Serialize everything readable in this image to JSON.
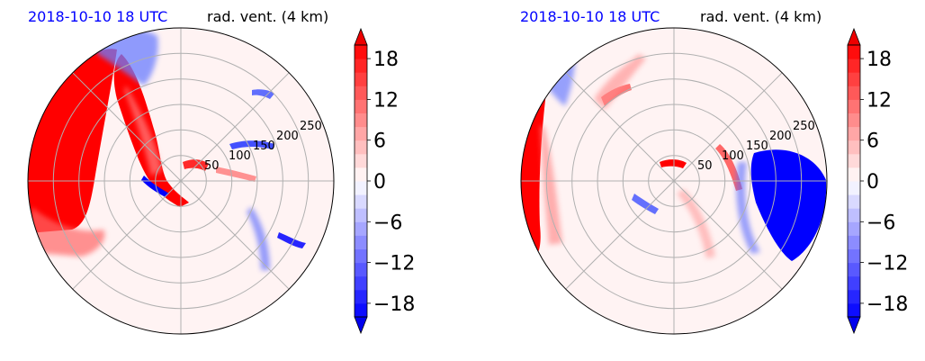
{
  "chart_data": [
    {
      "type": "heatmap",
      "projection": "polar",
      "title_left": "2018-10-10 18 UTC",
      "title_right": "rad. vent. (4 km)",
      "radial_ticks": [
        "50",
        "100",
        "150",
        "200",
        "250"
      ],
      "radial_values": [
        50,
        100,
        150,
        200,
        250
      ],
      "rmax": 300,
      "grid": true,
      "colormap": "bwr",
      "colorbar": {
        "ticks": [
          "−18",
          "−12",
          "−6",
          "0",
          "6",
          "12",
          "18"
        ],
        "tick_values": [
          -18,
          -12,
          -6,
          0,
          6,
          12,
          18
        ],
        "range": [
          -20,
          20
        ],
        "levels": 20,
        "extend": "both"
      },
      "features": [
        {
          "kind": "positive",
          "value": 20,
          "az_deg": [
            135,
            200
          ],
          "r": [
            180,
            300
          ]
        },
        {
          "kind": "positive",
          "value": 18,
          "az_deg": [
            105,
            160
          ],
          "r": [
            60,
            220
          ]
        },
        {
          "kind": "negative",
          "value": -14,
          "az_deg": [
            60,
            100
          ],
          "r": [
            200,
            300
          ]
        },
        {
          "kind": "negative",
          "value": -16,
          "az_deg": [
            300,
            330
          ],
          "r": [
            150,
            300
          ]
        },
        {
          "kind": "negative",
          "value": -12,
          "az_deg": [
            15,
            35
          ],
          "r": [
            110,
            300
          ]
        }
      ]
    },
    {
      "type": "heatmap",
      "projection": "polar",
      "title_left": "2018-10-10 18 UTC",
      "title_right": "rad. vent. (4 km)",
      "radial_ticks": [
        "50",
        "100",
        "150",
        "200",
        "250"
      ],
      "radial_values": [
        50,
        100,
        150,
        200,
        250
      ],
      "rmax": 300,
      "grid": true,
      "colormap": "bwr",
      "colorbar": {
        "ticks": [
          "−18",
          "−12",
          "−6",
          "0",
          "6",
          "12",
          "18"
        ],
        "tick_values": [
          -18,
          -12,
          -6,
          0,
          6,
          12,
          18
        ],
        "range": [
          -20,
          20
        ],
        "levels": 20,
        "extend": "both"
      },
      "features": [
        {
          "kind": "positive",
          "value": 18,
          "az_deg": [
            155,
            205
          ],
          "r": [
            250,
            300
          ]
        },
        {
          "kind": "positive",
          "value": 10,
          "az_deg": [
            115,
            140
          ],
          "r": [
            110,
            210
          ]
        },
        {
          "kind": "negative",
          "value": -18,
          "az_deg": [
            330,
            355
          ],
          "r": [
            150,
            300
          ]
        },
        {
          "kind": "positive",
          "value": 12,
          "az_deg": [
            340,
            10
          ],
          "r": [
            80,
            180
          ]
        },
        {
          "kind": "negative",
          "value": -10,
          "az_deg": [
            225,
            245
          ],
          "r": [
            60,
            120
          ]
        }
      ]
    }
  ]
}
